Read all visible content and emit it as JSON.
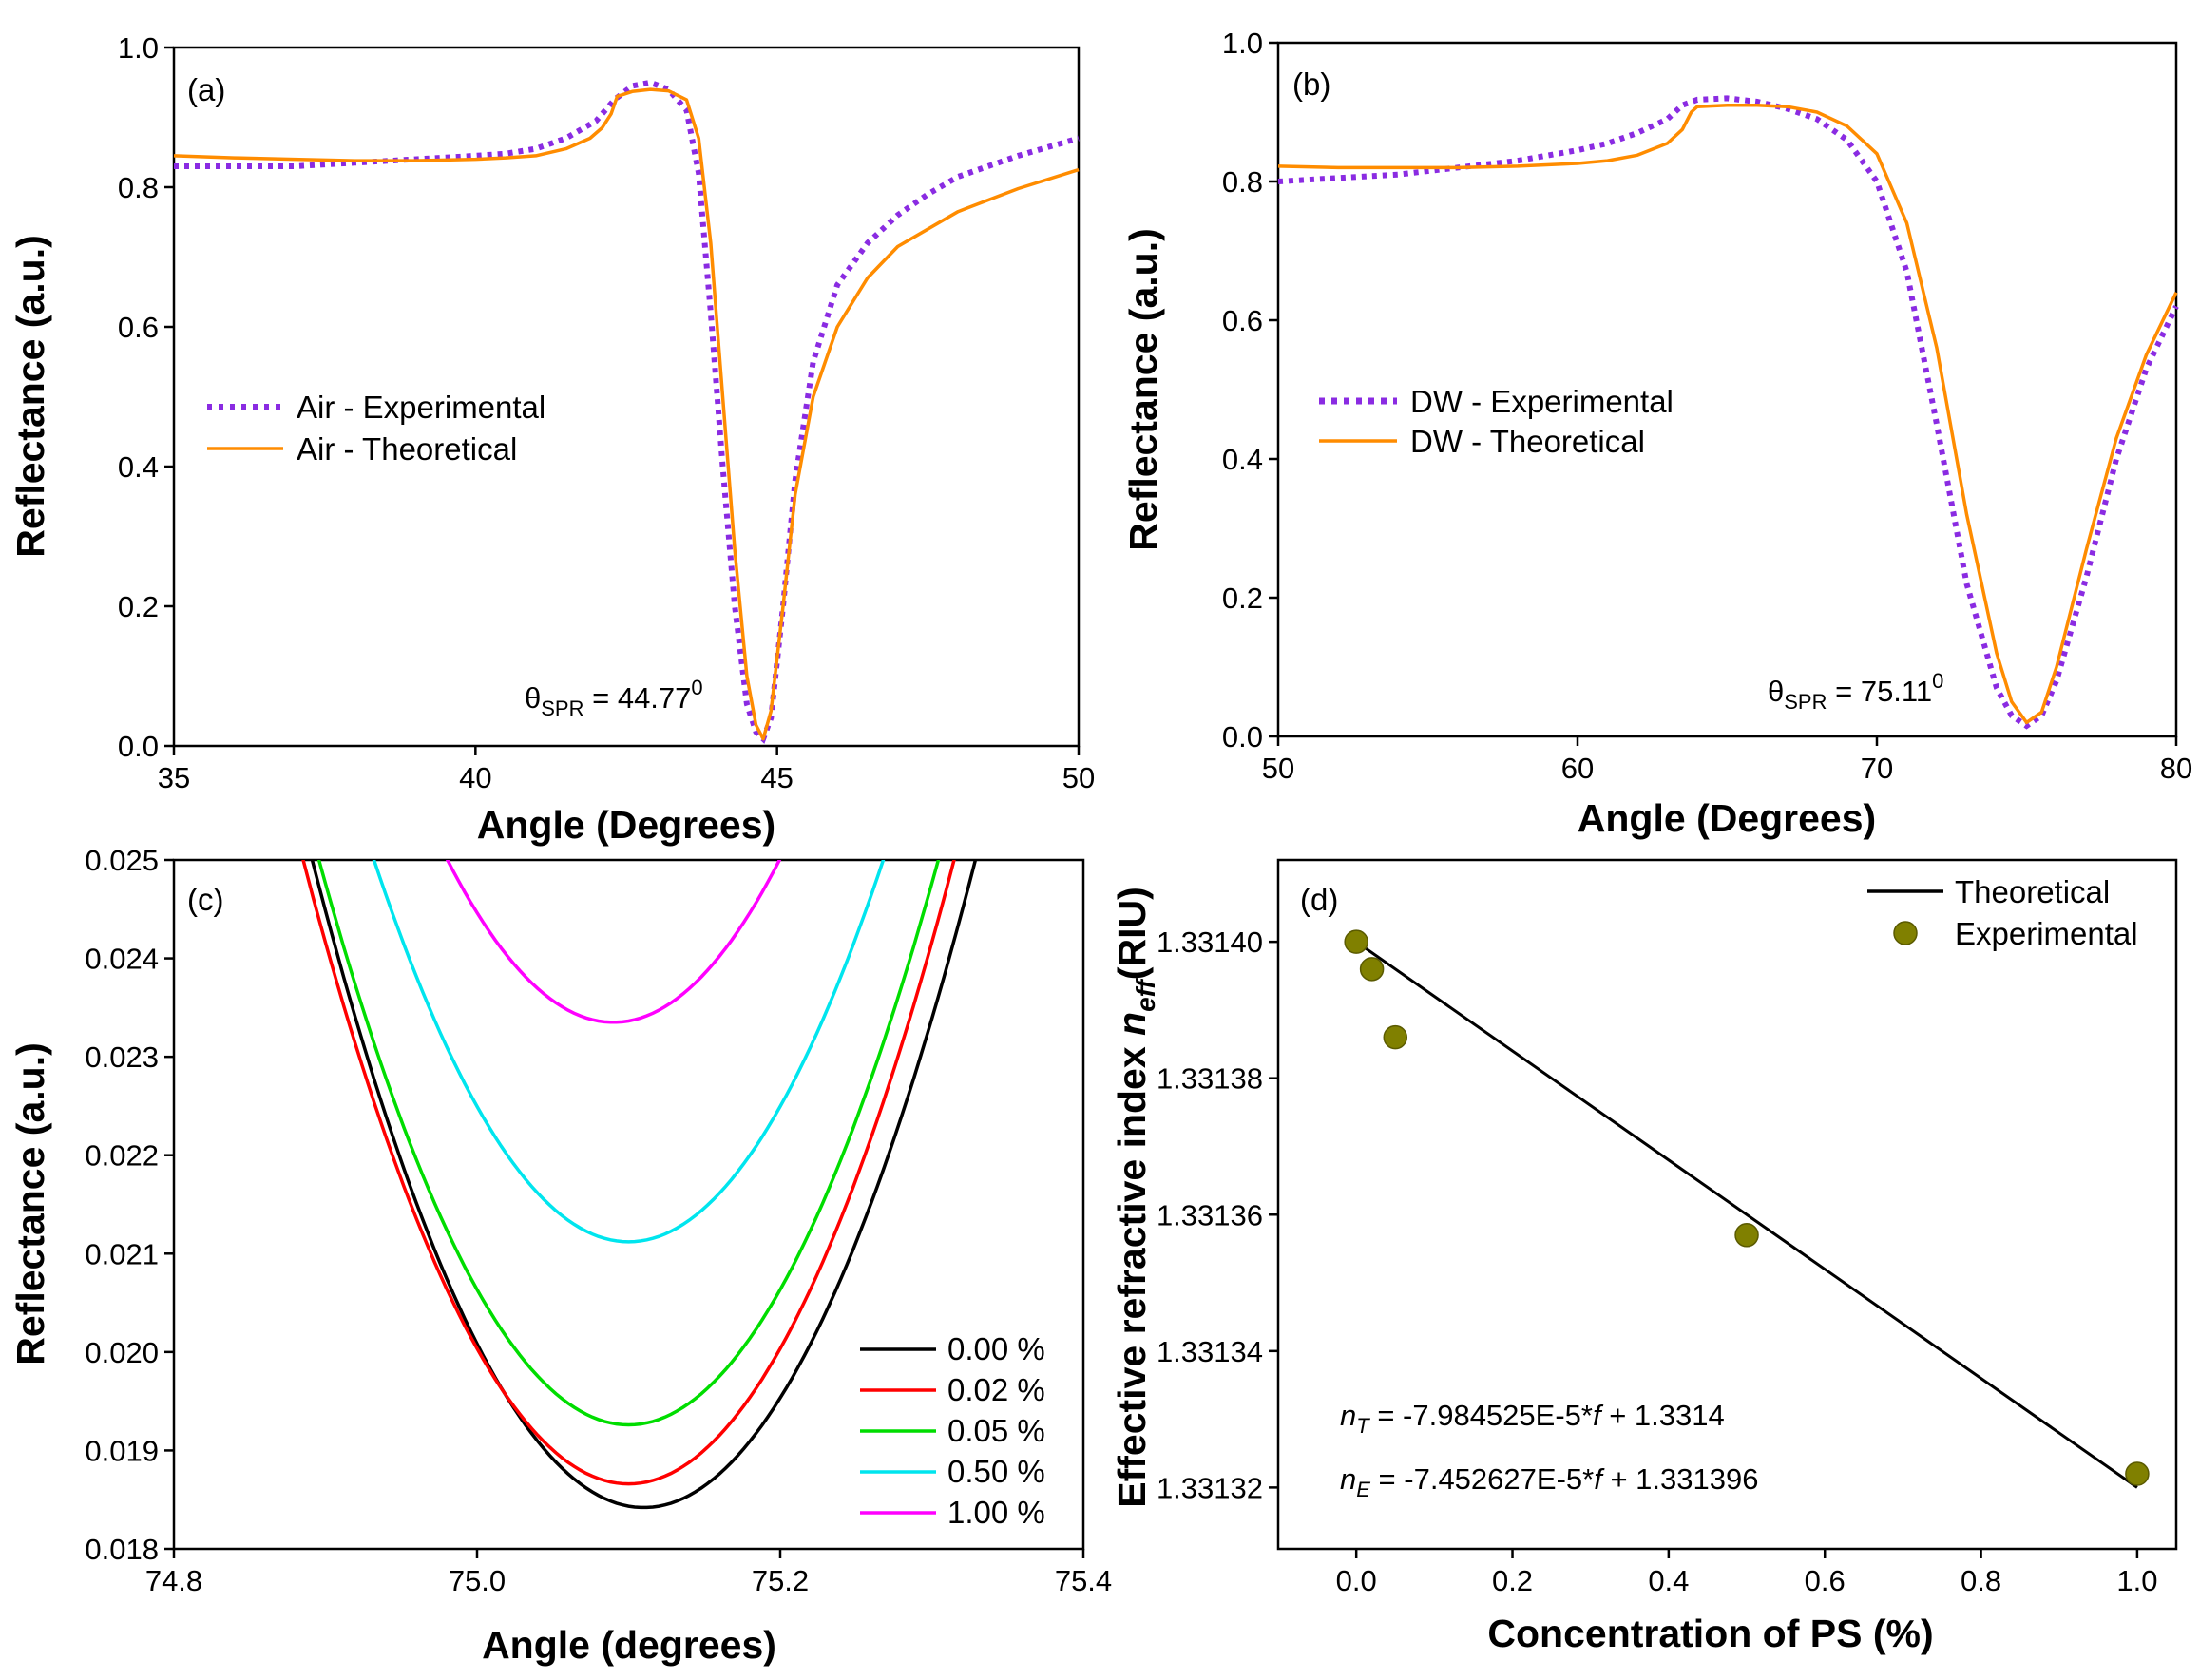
{
  "chart_data": [
    {
      "panel": "(a)",
      "type": "line",
      "xlabel": "Angle (Degrees)",
      "ylabel": "Reflectance (a.u.)",
      "xlim": [
        35,
        50
      ],
      "ylim": [
        0,
        1.0
      ],
      "xticks": [
        "35",
        "40",
        "45",
        "50"
      ],
      "yticks": [
        "0.0",
        "0.2",
        "0.4",
        "0.6",
        "0.8",
        "1.0"
      ],
      "legend": "left-middle",
      "annotation": {
        "theta": "θ",
        "sub": "SPR",
        "value": " = 44.77",
        "sup": "0"
      },
      "series": [
        {
          "name": "Air - Experimental",
          "style": "dotted",
          "color": "#8a2be2",
          "x": [
            35,
            36,
            37,
            38,
            39,
            40,
            40.5,
            41,
            41.5,
            42,
            42.3,
            42.6,
            42.9,
            43.2,
            43.5,
            43.7,
            43.9,
            44.1,
            44.3,
            44.5,
            44.65,
            44.77,
            44.9,
            45.1,
            45.3,
            45.6,
            46,
            46.5,
            47,
            47.5,
            48,
            49,
            50
          ],
          "y": [
            0.83,
            0.83,
            0.83,
            0.835,
            0.84,
            0.845,
            0.848,
            0.855,
            0.87,
            0.895,
            0.925,
            0.945,
            0.95,
            0.94,
            0.91,
            0.82,
            0.62,
            0.4,
            0.2,
            0.06,
            0.02,
            0.01,
            0.04,
            0.2,
            0.38,
            0.55,
            0.66,
            0.72,
            0.76,
            0.79,
            0.815,
            0.845,
            0.87
          ]
        },
        {
          "name": "Air - Theoretical",
          "style": "solid",
          "color": "#ff8c00",
          "x": [
            35,
            36,
            37,
            38,
            39,
            40,
            40.5,
            41,
            41.5,
            41.9,
            42.1,
            42.25,
            42.35,
            42.6,
            42.9,
            43.2,
            43.5,
            43.7,
            43.9,
            44.1,
            44.3,
            44.5,
            44.65,
            44.77,
            44.9,
            45.1,
            45.3,
            45.6,
            46,
            46.5,
            47,
            48,
            49,
            50
          ],
          "y": [
            0.845,
            0.842,
            0.84,
            0.838,
            0.838,
            0.84,
            0.842,
            0.845,
            0.855,
            0.87,
            0.885,
            0.905,
            0.93,
            0.937,
            0.94,
            0.938,
            0.925,
            0.87,
            0.72,
            0.5,
            0.28,
            0.1,
            0.03,
            0.01,
            0.05,
            0.2,
            0.36,
            0.5,
            0.6,
            0.67,
            0.715,
            0.765,
            0.798,
            0.825
          ]
        }
      ]
    },
    {
      "panel": "(b)",
      "type": "line",
      "xlabel": "Angle (Degrees)",
      "ylabel": "Reflectance (a.u.)",
      "xlim": [
        50,
        80
      ],
      "ylim": [
        0,
        1.0
      ],
      "xticks": [
        "50",
        "60",
        "70",
        "80"
      ],
      "yticks": [
        "0.0",
        "0.2",
        "0.4",
        "0.6",
        "0.8",
        "1.0"
      ],
      "legend": "left-middle",
      "annotation": {
        "theta": "θ",
        "sub": "SPR",
        "value": " = 75.11",
        "sup": "0"
      },
      "series": [
        {
          "name": "DW - Experimental",
          "style": "dotted",
          "color": "#8a2be2",
          "x": [
            50,
            52,
            54,
            56,
            58,
            60,
            61,
            62,
            63,
            63.5,
            64,
            65,
            66,
            67,
            68,
            69,
            70,
            71,
            72,
            73,
            74,
            74.5,
            75,
            75.5,
            76,
            77,
            78,
            79,
            80
          ],
          "y": [
            0.8,
            0.805,
            0.81,
            0.82,
            0.83,
            0.845,
            0.855,
            0.87,
            0.89,
            0.91,
            0.918,
            0.92,
            0.915,
            0.905,
            0.89,
            0.86,
            0.8,
            0.67,
            0.45,
            0.22,
            0.07,
            0.03,
            0.015,
            0.03,
            0.08,
            0.23,
            0.4,
            0.53,
            0.62
          ]
        },
        {
          "name": "DW - Theoretical",
          "style": "solid",
          "color": "#ff8c00",
          "x": [
            50,
            52,
            54,
            56,
            58,
            60,
            61,
            62,
            63,
            63.5,
            63.8,
            64,
            65,
            66,
            67,
            68,
            69,
            70,
            71,
            72,
            73,
            74,
            74.5,
            75,
            75.5,
            76,
            77,
            78,
            79,
            80
          ],
          "y": [
            0.822,
            0.82,
            0.82,
            0.82,
            0.822,
            0.826,
            0.83,
            0.838,
            0.855,
            0.875,
            0.9,
            0.908,
            0.91,
            0.91,
            0.908,
            0.9,
            0.88,
            0.84,
            0.74,
            0.56,
            0.32,
            0.12,
            0.05,
            0.02,
            0.035,
            0.1,
            0.27,
            0.43,
            0.55,
            0.64
          ]
        }
      ]
    },
    {
      "panel": "(c)",
      "type": "line",
      "xlabel": "Angle (degrees)",
      "ylabel": "Reflectance (a.u.)",
      "xlim": [
        74.8,
        75.4
      ],
      "ylim": [
        0.018,
        0.025
      ],
      "xticks": [
        "74.8",
        "75.0",
        "75.2",
        "75.4"
      ],
      "yticks": [
        "0.018",
        "0.019",
        "0.020",
        "0.021",
        "0.022",
        "0.023",
        "0.024",
        "0.025"
      ],
      "legend": "bottom-right",
      "series": [
        {
          "name": "0.00 %",
          "color": "#000000",
          "min_x": 75.11,
          "min_y": 0.01842,
          "curv": 0.1375
        },
        {
          "name": "0.02 %",
          "color": "#ff0000",
          "min_x": 75.1,
          "min_y": 0.01866,
          "curv": 0.1375
        },
        {
          "name": "0.05 %",
          "color": "#00dd00",
          "min_x": 75.1,
          "min_y": 0.01926,
          "curv": 0.1375
        },
        {
          "name": "0.50 %",
          "color": "#00e5ee",
          "min_x": 75.1,
          "min_y": 0.02112,
          "curv": 0.1375
        },
        {
          "name": "1.00 %",
          "color": "#ff00ff",
          "min_x": 75.09,
          "min_y": 0.02335,
          "curv": 0.1375
        }
      ]
    },
    {
      "panel": "(d)",
      "type": "scatter",
      "xlabel": "Concentration of PS (%)",
      "ylabel_main": "Effective refractive index ",
      "ylabel_n": "n",
      "ylabel_sub": "eff",
      "ylabel_unit": "(RIU)",
      "xlim": [
        -0.1,
        1.05
      ],
      "ylim": [
        1.331311,
        1.331412
      ],
      "xticks": [
        "0.0",
        "0.2",
        "0.4",
        "0.6",
        "0.8",
        "1.0"
      ],
      "yticks": [
        "1.33132",
        "1.33134",
        "1.33136",
        "1.33138",
        "1.33140"
      ],
      "legend": "top-right",
      "series": [
        {
          "name": "Theoretical",
          "type": "line",
          "color": "#000000",
          "x": [
            0,
            1.0
          ],
          "y": [
            1.3314,
            1.33132
          ]
        },
        {
          "name": "Experimental",
          "type": "scatter",
          "color": "#808000",
          "x": [
            0,
            0.02,
            0.05,
            0.5,
            1.0
          ],
          "y": [
            1.3314,
            1.331396,
            1.331386,
            1.331357,
            1.331322
          ]
        }
      ],
      "equations": [
        {
          "n": "n",
          "sub": "T",
          "text": " = -7.984525E-5*",
          "f": "f",
          "tail": " + 1.3314"
        },
        {
          "n": "n",
          "sub": "E",
          "text": " = -7.452627E-5*",
          "f": "f",
          "tail": " + 1.331396"
        }
      ]
    }
  ]
}
